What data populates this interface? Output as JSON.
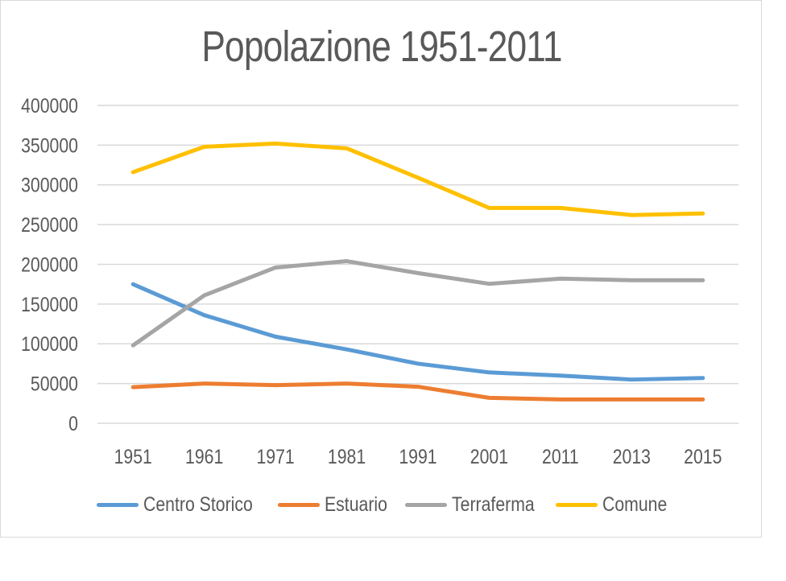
{
  "chart_data": {
    "type": "line",
    "title": "Popolazione 1951-2011",
    "xlabel": "",
    "ylabel": "",
    "categories": [
      "1951",
      "1961",
      "1971",
      "1981",
      "1991",
      "2001",
      "2011",
      "2013",
      "2015"
    ],
    "ylim": [
      0,
      400000
    ],
    "yticks": [
      "0",
      "50000",
      "100000",
      "150000",
      "200000",
      "250000",
      "300000",
      "350000",
      "400000"
    ],
    "grid": true,
    "legend": "bottom",
    "series": [
      {
        "name": "Centro Storico",
        "color": "#5b9bd5",
        "values": [
          175000,
          136000,
          109000,
          93000,
          75000,
          64000,
          60000,
          55000,
          57000
        ]
      },
      {
        "name": "Estuario",
        "color": "#ed7d31",
        "values": [
          45500,
          50000,
          48000,
          50000,
          46000,
          32000,
          30000,
          30000,
          30000
        ]
      },
      {
        "name": "Terraferma",
        "color": "#a5a5a5",
        "values": [
          98000,
          161000,
          196000,
          204000,
          189000,
          175500,
          182000,
          180000,
          180000
        ]
      },
      {
        "name": "Comune",
        "color": "#ffc000",
        "values": [
          316000,
          348000,
          352000,
          346000,
          309000,
          271000,
          271000,
          262000,
          264000
        ]
      }
    ]
  }
}
